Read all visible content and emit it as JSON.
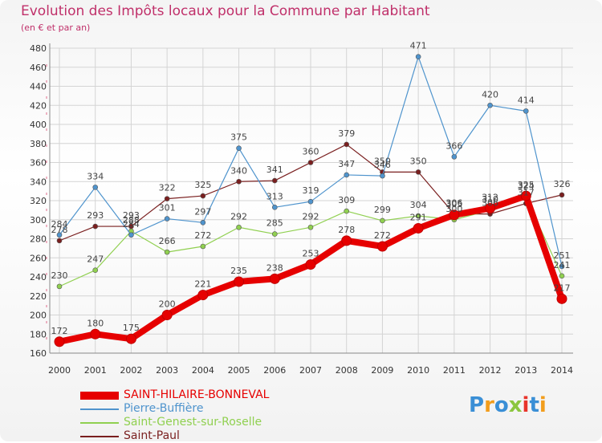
{
  "title": "Evolution des Impôts locaux pour la Commune par Habitant",
  "subtitle": "(en € et par an)",
  "logo": {
    "text": "Proxiti",
    "colors": [
      "#3a8fd6",
      "#f29d1c",
      "#3a8fd6",
      "#8cc63f",
      "#e8342b",
      "#3a8fd6",
      "#f29d1c"
    ]
  },
  "chart_data": {
    "type": "line",
    "title": "Evolution des Impôts locaux pour la Commune par Habitant",
    "ylabel": "(en € et par an)",
    "xlabel": "",
    "ylim": [
      160,
      480
    ],
    "yticks": [
      160,
      180,
      200,
      220,
      240,
      260,
      280,
      300,
      320,
      340,
      360,
      380,
      400,
      420,
      440,
      460,
      480
    ],
    "categories": [
      "2000",
      "2001",
      "2002",
      "2003",
      "2004",
      "2005",
      "2006",
      "2007",
      "2008",
      "2009",
      "2010",
      "2011",
      "2012",
      "2013",
      "2014"
    ],
    "grid": true,
    "legend_position": "bottom-left",
    "series": [
      {
        "name": "SAINT-HILAIRE-BONNEVAL",
        "color": "#e60000",
        "values": [
          172,
          180,
          175,
          200,
          221,
          235,
          238,
          253,
          278,
          272,
          291,
          305,
          312,
          325,
          217
        ],
        "labels": [
          "172",
          "180",
          "175",
          "200",
          "221",
          "235",
          "238",
          "253",
          "278",
          "272",
          "291",
          "305",
          "312",
          "325",
          "217"
        ]
      },
      {
        "name": "Pierre-Buffière",
        "color": "#4f94cd",
        "values": [
          284,
          334,
          284,
          301,
          297,
          375,
          313,
          319,
          347,
          346,
          471,
          366,
          420,
          414,
          251
        ],
        "labels": [
          "284",
          "334",
          "284",
          "301",
          "297",
          "375",
          "313",
          "319",
          "347",
          "346",
          "471",
          "366",
          "420",
          "414",
          "251"
        ]
      },
      {
        "name": "Saint-Genest-sur-Roselle",
        "color": "#90d050",
        "values": [
          230,
          247,
          288,
          266,
          272,
          292,
          285,
          292,
          309,
          299,
          304,
          300,
          310,
          324,
          241
        ],
        "labels": [
          "230",
          "247",
          "288",
          "266",
          "272",
          "292",
          "285",
          "292",
          "309",
          "299",
          "304",
          "300",
          "310",
          "324",
          "241"
        ]
      },
      {
        "name": "Saint-Paul",
        "color": "#7a1f1f",
        "values": [
          278,
          293,
          293,
          322,
          325,
          340,
          341,
          360,
          379,
          350,
          350,
          306,
          306,
          317,
          326
        ],
        "labels": [
          "278",
          "293",
          "293",
          "322",
          "325",
          "340",
          "341",
          "360",
          "379",
          "350",
          "350",
          "306",
          "306",
          "317",
          "326"
        ]
      }
    ]
  }
}
